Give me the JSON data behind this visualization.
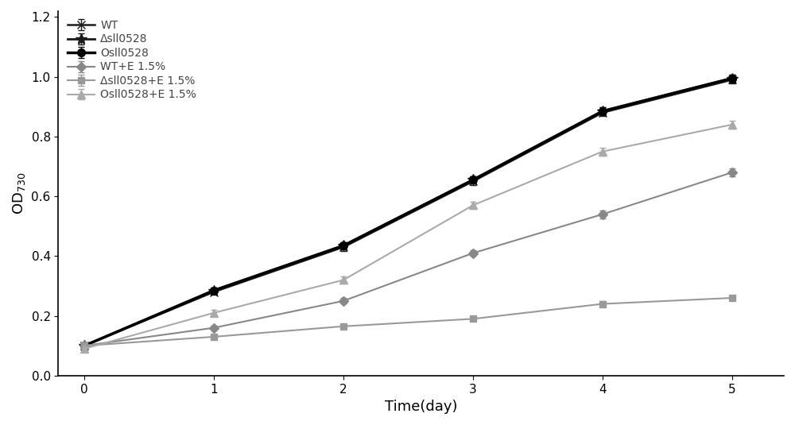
{
  "x": [
    0,
    1,
    2,
    3,
    4,
    5
  ],
  "series": [
    {
      "label": "WT",
      "y": [
        0.1,
        0.28,
        0.43,
        0.65,
        0.88,
        0.99
      ],
      "yerr": [
        0.004,
        0.01,
        0.012,
        0.012,
        0.012,
        0.012
      ],
      "color": "#1a1a1a",
      "marker": "x",
      "linewidth": 1.8,
      "markersize": 7
    },
    {
      "label": "Δsll0528",
      "y": [
        0.1,
        0.285,
        0.435,
        0.655,
        0.885,
        0.995
      ],
      "yerr": [
        0.004,
        0.01,
        0.012,
        0.012,
        0.012,
        0.012
      ],
      "color": "#1a1a1a",
      "marker": "*",
      "linewidth": 2.0,
      "markersize": 10
    },
    {
      "label": "Osll0528",
      "y": [
        0.1,
        0.285,
        0.435,
        0.655,
        0.885,
        0.995
      ],
      "yerr": [
        0.004,
        0.01,
        0.012,
        0.012,
        0.012,
        0.012
      ],
      "color": "#000000",
      "marker": "o",
      "linewidth": 2.5,
      "markersize": 7,
      "markerfacecolor": "#000000"
    },
    {
      "label": "WT+E 1.5%",
      "y": [
        0.1,
        0.16,
        0.25,
        0.41,
        0.54,
        0.68
      ],
      "yerr": [
        0.004,
        0.007,
        0.009,
        0.01,
        0.013,
        0.013
      ],
      "color": "#888888",
      "marker": "D",
      "linewidth": 1.5,
      "markersize": 6,
      "markerfacecolor": "#888888"
    },
    {
      "label": "Δsll0528+E 1.5%",
      "y": [
        0.1,
        0.13,
        0.165,
        0.19,
        0.24,
        0.26
      ],
      "yerr": [
        0.004,
        0.005,
        0.007,
        0.007,
        0.009,
        0.009
      ],
      "color": "#999999",
      "marker": "s",
      "linewidth": 1.5,
      "markersize": 6,
      "markerfacecolor": "#999999"
    },
    {
      "label": "Osll0528+E 1.5%",
      "y": [
        0.09,
        0.21,
        0.32,
        0.57,
        0.75,
        0.84
      ],
      "yerr": [
        0.004,
        0.009,
        0.011,
        0.013,
        0.013,
        0.013
      ],
      "color": "#aaaaaa",
      "marker": "^",
      "linewidth": 1.5,
      "markersize": 7,
      "markerfacecolor": "#aaaaaa"
    }
  ],
  "xlabel": "Time(day)",
  "ylabel": "OD$_{730}$",
  "xlim": [
    -0.2,
    5.4
  ],
  "ylim": [
    0,
    1.22
  ],
  "yticks": [
    0,
    0.2,
    0.4,
    0.6,
    0.8,
    1.0,
    1.2
  ],
  "xticks": [
    0,
    1,
    2,
    3,
    4,
    5
  ],
  "legend_fontsize": 10,
  "xlabel_fontsize": 13,
  "ylabel_fontsize": 13,
  "tick_labelsize": 11,
  "background_color": "#ffffff",
  "legend_text_color": "#444444"
}
